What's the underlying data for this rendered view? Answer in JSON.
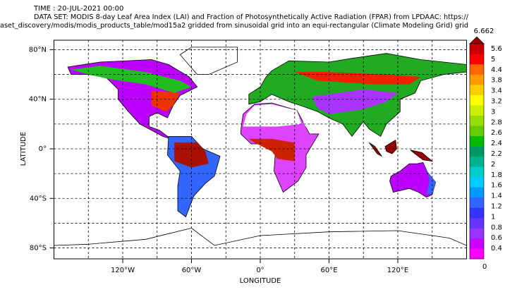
{
  "header": {
    "time": "TIME : 20-JUL-2021 00:00",
    "dataset_line1": "DATA SET: MODIS 8-day Leaf Area Index (LAI) and Fraction of Photosynthetically Active Radiation (FPAR) from LPDAAC: https://",
    "dataset_line2": "aset_discovery/modis/modis_products_table/mod15a2 gridded from sinusoidal grid into an equi-rectangular (Climate Modeling Grid) grid"
  },
  "map": {
    "x_label": "LONGITUDE",
    "y_label": "LATITUDE",
    "x_ticks": [
      "120°W",
      "60°W",
      "0°",
      "60°E",
      "120°E"
    ],
    "y_ticks": [
      "80°N",
      "40°N",
      "0°",
      "40°S",
      "80°S"
    ]
  },
  "colorbar": {
    "max_label": "6.662",
    "labels": [
      "5.6",
      "5",
      "4.4",
      "3.8",
      "3.4",
      "3.2",
      "3",
      "2.8",
      "2.6",
      "2.4",
      "2.2",
      "2",
      "1.8",
      "1.6",
      "1.4",
      "1.2",
      "1",
      "0.8",
      "0.6",
      "0.4"
    ],
    "bottom_label": "0",
    "colors": [
      "#ff00ff",
      "#cc00ff",
      "#9933ff",
      "#6633ff",
      "#3333ff",
      "#3366ff",
      "#0099ff",
      "#00ccff",
      "#00cccc",
      "#00b38f",
      "#009966",
      "#00bb00",
      "#66cc00",
      "#99dd00",
      "#ccee00",
      "#ffff00",
      "#ffcc00",
      "#ff9900",
      "#ff6600",
      "#ff0000",
      "#cc0000"
    ],
    "arrow_color": "#990000"
  }
}
